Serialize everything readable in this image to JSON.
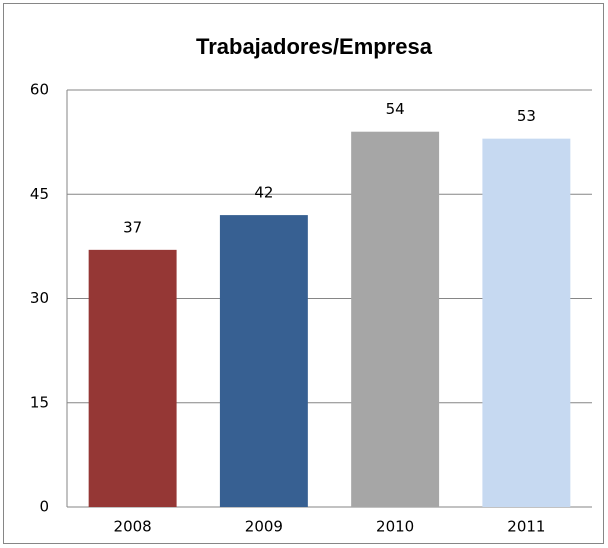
{
  "chart_data": {
    "type": "bar",
    "title": "Trabajadores/Empresa",
    "categories": [
      "2008",
      "2009",
      "2010",
      "2011"
    ],
    "values": [
      37,
      42,
      54,
      53
    ],
    "colors": [
      "#953735",
      "#376092",
      "#a6a6a6",
      "#c6d9f1"
    ],
    "ylim": [
      0,
      60
    ],
    "yticks": [
      0,
      15,
      30,
      45,
      60
    ],
    "grid": true
  }
}
